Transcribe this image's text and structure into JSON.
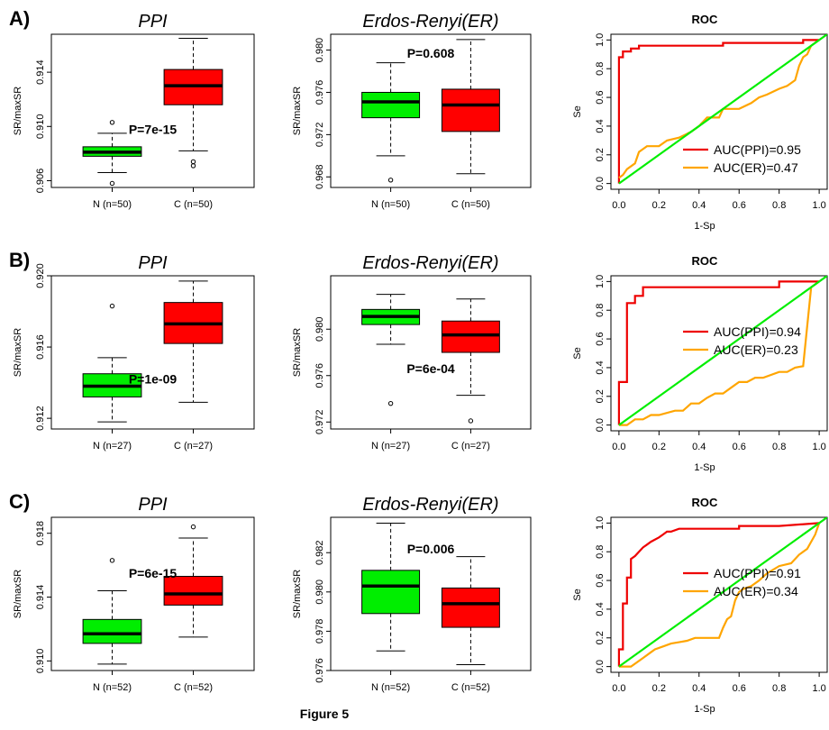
{
  "figure_caption": "Figure 5",
  "colors": {
    "normal": "#00ee00",
    "cancer": "#ff0000",
    "ppi": "#ee0000",
    "er": "#ffa500",
    "diagonal": "#00ee00"
  },
  "chart_data": [
    {
      "panel": "A)",
      "type": "box",
      "title": "PPI",
      "ylabel": "SR/maxSR",
      "ylim": [
        0.9055,
        0.9168
      ],
      "yticks": [
        "0.906",
        "0.910",
        "0.914"
      ],
      "ytick_values": [
        0.906,
        0.91,
        0.914
      ],
      "categories": [
        "N (n=50)",
        "C (n=50)"
      ],
      "boxes": [
        {
          "name": "N (n=50)",
          "color": "#00ee00",
          "whisker_low": 0.9066,
          "q1": 0.9078,
          "median": 0.9081,
          "q3": 0.9085,
          "whisker_high": 0.9095,
          "outliers": [
            0.9103,
            0.9058
          ]
        },
        {
          "name": "C (n=50)",
          "color": "#ff0000",
          "whisker_low": 0.9082,
          "q1": 0.9116,
          "median": 0.913,
          "q3": 0.9142,
          "whisker_high": 0.9165,
          "outliers": [
            0.9074,
            0.9071
          ]
        }
      ],
      "pvalue": "P=7e-15",
      "pvalue_y": 0.9098
    },
    {
      "panel": "",
      "type": "box",
      "title": "Erdos-Renyi(ER)",
      "ylabel": "SR/maxSR",
      "ylim": [
        0.967,
        0.9815
      ],
      "yticks": [
        "0.968",
        "0.972",
        "0.976",
        "0.980"
      ],
      "ytick_values": [
        0.968,
        0.972,
        0.976,
        0.98
      ],
      "categories": [
        "N (n=50)",
        "C (n=50)"
      ],
      "boxes": [
        {
          "name": "N (n=50)",
          "color": "#00ee00",
          "whisker_low": 0.97,
          "q1": 0.9736,
          "median": 0.9751,
          "q3": 0.976,
          "whisker_high": 0.9788,
          "outliers": [
            0.9677
          ]
        },
        {
          "name": "C (n=50)",
          "color": "#ff0000",
          "whisker_low": 0.9683,
          "q1": 0.9723,
          "median": 0.9748,
          "q3": 0.9763,
          "whisker_high": 0.981,
          "outliers": []
        }
      ],
      "pvalue": "P=0.608",
      "pvalue_y": 0.9797
    },
    {
      "panel": "",
      "type": "line",
      "title": "ROC",
      "xlabel": "1-Sp",
      "ylabel": "Se",
      "xlim": [
        -0.04,
        1.04
      ],
      "ylim": [
        -0.04,
        1.04
      ],
      "ticks": [
        "0.0",
        "0.2",
        "0.4",
        "0.6",
        "0.8",
        "1.0"
      ],
      "tick_values": [
        0,
        0.2,
        0.4,
        0.6,
        0.8,
        1.0
      ],
      "legend": [
        "AUC(PPI)=0.95",
        "AUC(ER)=0.47"
      ],
      "legend_position": "bottom-right",
      "series": [
        {
          "name": "AUC(PPI)=0.95",
          "color": "#ee0000",
          "x": [
            0,
            0,
            0.02,
            0.02,
            0.06,
            0.06,
            0.1,
            0.1,
            0.5,
            0.52,
            0.52,
            0.9,
            0.92,
            0.92,
            1.0
          ],
          "y": [
            0,
            0.88,
            0.88,
            0.92,
            0.92,
            0.94,
            0.94,
            0.96,
            0.96,
            0.96,
            0.98,
            0.98,
            0.98,
            1.0,
            1.0
          ]
        },
        {
          "name": "AUC(ER)=0.47",
          "color": "#ffa500",
          "x": [
            0,
            0.02,
            0.04,
            0.08,
            0.1,
            0.12,
            0.14,
            0.2,
            0.24,
            0.3,
            0.36,
            0.4,
            0.44,
            0.5,
            0.52,
            0.6,
            0.66,
            0.7,
            0.74,
            0.8,
            0.84,
            0.88,
            0.9,
            0.92,
            0.94,
            0.96,
            1.0
          ],
          "y": [
            0.04,
            0.06,
            0.1,
            0.14,
            0.22,
            0.24,
            0.26,
            0.26,
            0.3,
            0.32,
            0.36,
            0.4,
            0.46,
            0.46,
            0.52,
            0.52,
            0.56,
            0.6,
            0.62,
            0.66,
            0.68,
            0.72,
            0.82,
            0.88,
            0.9,
            0.96,
            1.0
          ]
        },
        {
          "name": "diagonal",
          "color": "#00ee00",
          "x": [
            0,
            1.04
          ],
          "y": [
            0,
            1.04
          ]
        }
      ]
    },
    {
      "panel": "B)",
      "type": "box",
      "title": "PPI",
      "ylabel": "SR/maxSR",
      "ylim": [
        0.9114,
        0.92
      ],
      "yticks": [
        "0.912",
        "0.916",
        "0.920"
      ],
      "ytick_values": [
        0.912,
        0.916,
        0.92
      ],
      "categories": [
        "N (n=27)",
        "C (n=27)"
      ],
      "boxes": [
        {
          "name": "N (n=27)",
          "color": "#00ee00",
          "whisker_low": 0.9118,
          "q1": 0.9132,
          "median": 0.9138,
          "q3": 0.9145,
          "whisker_high": 0.9154,
          "outliers": [
            0.9183
          ]
        },
        {
          "name": "C (n=27)",
          "color": "#ff0000",
          "whisker_low": 0.9129,
          "q1": 0.9162,
          "median": 0.9173,
          "q3": 0.9185,
          "whisker_high": 0.9197,
          "outliers": []
        }
      ],
      "pvalue": "P=1e-09",
      "pvalue_y": 0.9142
    },
    {
      "panel": "",
      "type": "box",
      "title": "Erdos-Renyi(ER)",
      "ylabel": "SR/maxSR",
      "ylim": [
        0.9714,
        0.9846
      ],
      "yticks": [
        "0.972",
        "0.976",
        "0.980"
      ],
      "ytick_values": [
        0.972,
        0.976,
        0.98
      ],
      "categories": [
        "N (n=27)",
        "C (n=27)"
      ],
      "boxes": [
        {
          "name": "N (n=27)",
          "color": "#00ee00",
          "whisker_low": 0.9787,
          "q1": 0.9804,
          "median": 0.9811,
          "q3": 0.9817,
          "whisker_high": 0.983,
          "outliers": [
            0.9736
          ]
        },
        {
          "name": "C (n=27)",
          "color": "#ff0000",
          "whisker_low": 0.9743,
          "q1": 0.978,
          "median": 0.9795,
          "q3": 0.9807,
          "whisker_high": 0.9826,
          "outliers": [
            0.9721
          ]
        }
      ],
      "pvalue": "P=6e-04",
      "pvalue_y": 0.9766
    },
    {
      "panel": "",
      "type": "line",
      "title": "ROC",
      "xlabel": "1-Sp",
      "ylabel": "Se",
      "xlim": [
        -0.04,
        1.04
      ],
      "ylim": [
        -0.04,
        1.04
      ],
      "ticks": [
        "0.0",
        "0.2",
        "0.4",
        "0.6",
        "0.8",
        "1.0"
      ],
      "tick_values": [
        0,
        0.2,
        0.4,
        0.6,
        0.8,
        1.0
      ],
      "legend": [
        "AUC(PPI)=0.94",
        "AUC(ER)=0.23"
      ],
      "legend_position": "center-right",
      "series": [
        {
          "name": "AUC(PPI)=0.94",
          "color": "#ee0000",
          "x": [
            0,
            0,
            0.04,
            0.04,
            0.08,
            0.08,
            0.12,
            0.12,
            0.8,
            0.8,
            1.0
          ],
          "y": [
            0,
            0.3,
            0.3,
            0.85,
            0.85,
            0.9,
            0.9,
            0.96,
            0.96,
            1.0,
            1.0
          ]
        },
        {
          "name": "AUC(ER)=0.23",
          "color": "#ffa500",
          "x": [
            0,
            0.04,
            0.08,
            0.12,
            0.16,
            0.2,
            0.28,
            0.32,
            0.36,
            0.4,
            0.44,
            0.48,
            0.52,
            0.56,
            0.6,
            0.64,
            0.68,
            0.72,
            0.8,
            0.84,
            0.88,
            0.92,
            0.96,
            0.96,
            1.0
          ],
          "y": [
            0,
            0.0,
            0.04,
            0.04,
            0.07,
            0.07,
            0.1,
            0.1,
            0.15,
            0.15,
            0.19,
            0.22,
            0.22,
            0.26,
            0.3,
            0.3,
            0.33,
            0.33,
            0.37,
            0.37,
            0.4,
            0.41,
            0.96,
            0.96,
            1.0
          ]
        },
        {
          "name": "diagonal",
          "color": "#00ee00",
          "x": [
            0,
            1.04
          ],
          "y": [
            0,
            1.04
          ]
        }
      ]
    },
    {
      "panel": "C)",
      "type": "box",
      "title": "PPI",
      "ylabel": "SR/maxSR",
      "ylim": [
        0.9094,
        0.919
      ],
      "yticks": [
        "0.910",
        "0.914",
        "0.918"
      ],
      "ytick_values": [
        0.91,
        0.914,
        0.918
      ],
      "categories": [
        "N (n=52)",
        "C (n=52)"
      ],
      "boxes": [
        {
          "name": "N (n=52)",
          "color": "#00ee00",
          "whisker_low": 0.9098,
          "q1": 0.9111,
          "median": 0.9117,
          "q3": 0.9126,
          "whisker_high": 0.9144,
          "outliers": [
            0.9163
          ]
        },
        {
          "name": "C (n=52)",
          "color": "#ff0000",
          "whisker_low": 0.9115,
          "q1": 0.9135,
          "median": 0.9142,
          "q3": 0.9153,
          "whisker_high": 0.9177,
          "outliers": [
            0.9184
          ]
        }
      ],
      "pvalue": "P=6e-15",
      "pvalue_y": 0.9155
    },
    {
      "panel": "",
      "type": "box",
      "title": "Erdos-Renyi(ER)",
      "ylabel": "SR/maxSR",
      "ylim": [
        0.976,
        0.9838
      ],
      "yticks": [
        "0.976",
        "0.978",
        "0.980",
        "0.982"
      ],
      "ytick_values": [
        0.976,
        0.978,
        0.98,
        0.982
      ],
      "categories": [
        "N (n=52)",
        "C (n=52)"
      ],
      "boxes": [
        {
          "name": "N (n=52)",
          "color": "#00ee00",
          "whisker_low": 0.977,
          "q1": 0.9789,
          "median": 0.9803,
          "q3": 0.9811,
          "whisker_high": 0.9835,
          "outliers": []
        },
        {
          "name": "C (n=52)",
          "color": "#ff0000",
          "whisker_low": 0.9763,
          "q1": 0.9782,
          "median": 0.9794,
          "q3": 0.9802,
          "whisker_high": 0.9818,
          "outliers": []
        }
      ],
      "pvalue": "P=0.006",
      "pvalue_y": 0.9822
    },
    {
      "panel": "",
      "type": "line",
      "title": "ROC",
      "xlabel": "1-Sp",
      "ylabel": "Se",
      "xlim": [
        -0.04,
        1.04
      ],
      "ylim": [
        -0.04,
        1.04
      ],
      "ticks": [
        "0.0",
        "0.2",
        "0.4",
        "0.6",
        "0.8",
        "1.0"
      ],
      "tick_values": [
        0,
        0.2,
        0.4,
        0.6,
        0.8,
        1.0
      ],
      "legend": [
        "AUC(PPI)=0.91",
        "AUC(ER)=0.34"
      ],
      "legend_position": "center-right",
      "series": [
        {
          "name": "AUC(PPI)=0.91",
          "color": "#ee0000",
          "x": [
            0,
            0,
            0.02,
            0.02,
            0.04,
            0.04,
            0.06,
            0.06,
            0.08,
            0.1,
            0.12,
            0.14,
            0.16,
            0.2,
            0.22,
            0.24,
            0.26,
            0.3,
            0.6,
            0.6,
            0.8,
            1.0
          ],
          "y": [
            0,
            0.12,
            0.12,
            0.44,
            0.44,
            0.62,
            0.62,
            0.75,
            0.77,
            0.8,
            0.83,
            0.85,
            0.87,
            0.9,
            0.92,
            0.94,
            0.94,
            0.96,
            0.96,
            0.98,
            0.98,
            1.0
          ]
        },
        {
          "name": "AUC(ER)=0.34",
          "color": "#ffa500",
          "x": [
            0,
            0.06,
            0.12,
            0.16,
            0.18,
            0.22,
            0.26,
            0.3,
            0.34,
            0.38,
            0.42,
            0.5,
            0.52,
            0.54,
            0.56,
            0.58,
            0.6,
            0.62,
            0.66,
            0.7,
            0.74,
            0.8,
            0.86,
            0.9,
            0.94,
            0.98,
            1.0
          ],
          "y": [
            0,
            0.0,
            0.06,
            0.1,
            0.12,
            0.14,
            0.16,
            0.17,
            0.18,
            0.2,
            0.2,
            0.2,
            0.27,
            0.33,
            0.35,
            0.46,
            0.52,
            0.54,
            0.56,
            0.6,
            0.65,
            0.7,
            0.72,
            0.78,
            0.82,
            0.92,
            1.0
          ]
        },
        {
          "name": "diagonal",
          "color": "#00ee00",
          "x": [
            0,
            1.04
          ],
          "y": [
            0,
            1.04
          ]
        }
      ]
    }
  ]
}
